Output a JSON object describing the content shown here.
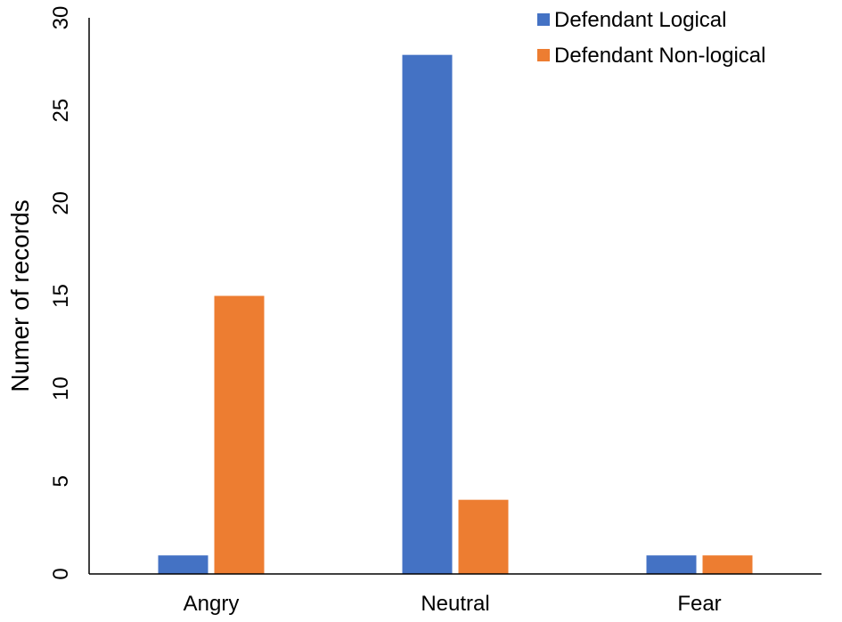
{
  "chart_data": {
    "type": "bar",
    "categories": [
      "Angry",
      "Neutral",
      "Fear"
    ],
    "series": [
      {
        "name": "Defendant Logical",
        "color": "#4472C4",
        "values": [
          1,
          28,
          1
        ]
      },
      {
        "name": "Defendant Non-logical",
        "color": "#ED7D31",
        "values": [
          15,
          4,
          1
        ]
      }
    ],
    "title": "",
    "xlabel": "",
    "ylabel": "Numer of records",
    "ylim": [
      0,
      30
    ],
    "yticks": [
      0,
      5,
      10,
      15,
      20,
      25,
      30
    ],
    "grid": false,
    "legend_position": "top-right"
  }
}
